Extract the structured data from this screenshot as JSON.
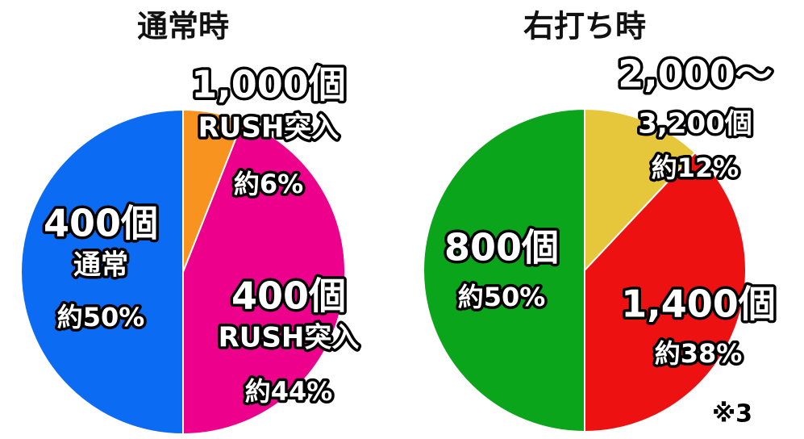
{
  "chart_data": [
    {
      "type": "pie",
      "title": "通常時",
      "categories": [
        [
          "1,000個",
          "RUSH突入"
        ],
        [
          "400個",
          "RUSH突入"
        ],
        [
          "400個",
          "通常"
        ]
      ],
      "values": [
        6,
        44,
        50
      ],
      "value_labels": [
        "約6%",
        "約44%",
        "約50%"
      ],
      "colors": [
        "#f7931e",
        "#ec008c",
        "#0b6cf3"
      ]
    },
    {
      "type": "pie",
      "title": "右打ち時",
      "categories": [
        [
          "2,000～",
          "3,200個"
        ],
        [
          "1,400個"
        ],
        [
          "800個"
        ]
      ],
      "values": [
        12,
        38,
        50
      ],
      "value_labels": [
        "約12%",
        "約38%",
        "約50%"
      ],
      "colors": [
        "#e6c63a",
        "#ee1111",
        "#0aa51a"
      ],
      "annotation": "※3"
    }
  ]
}
